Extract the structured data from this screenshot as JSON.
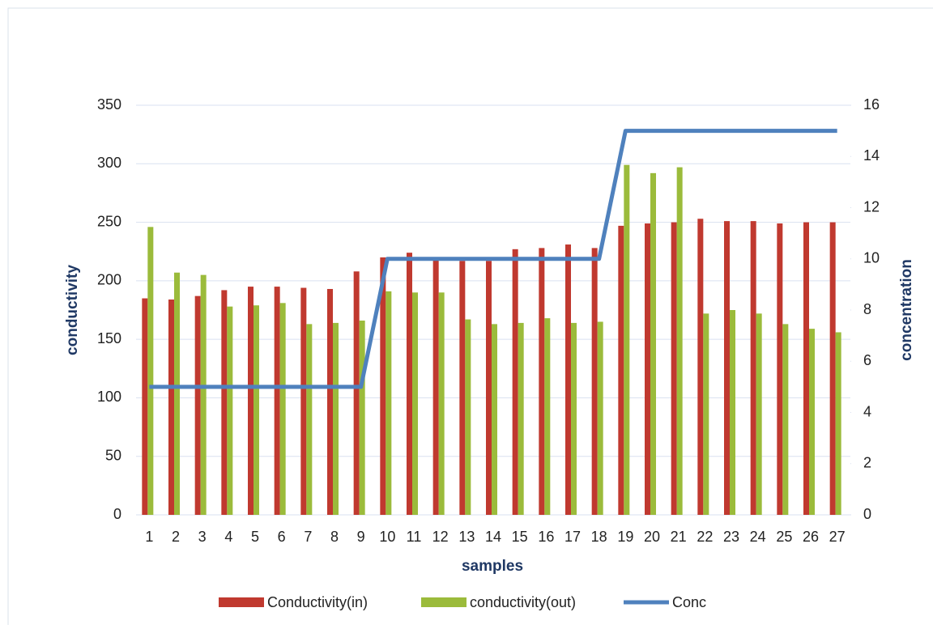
{
  "chart_data": {
    "type": "bar",
    "xlabel": "samples",
    "ylabel": "conductivity",
    "y2label": "concentration",
    "categories": [
      "1",
      "2",
      "3",
      "4",
      "5",
      "6",
      "7",
      "8",
      "9",
      "10",
      "11",
      "12",
      "13",
      "14",
      "15",
      "16",
      "17",
      "18",
      "19",
      "20",
      "21",
      "22",
      "23",
      "24",
      "25",
      "26",
      "27"
    ],
    "series": [
      {
        "name": "Conductivity(in)",
        "type": "bar",
        "color": "#c0392f",
        "values": [
          185,
          184,
          187,
          192,
          195,
          195,
          194,
          193,
          208,
          220,
          224,
          218,
          217,
          217,
          227,
          228,
          231,
          228,
          247,
          249,
          250,
          253,
          251,
          251,
          249,
          250,
          250
        ]
      },
      {
        "name": "conductivity(out)",
        "type": "bar",
        "color": "#9bbb3b",
        "values": [
          246,
          207,
          205,
          178,
          179,
          181,
          163,
          164,
          166,
          191,
          190,
          190,
          167,
          163,
          164,
          168,
          164,
          165,
          299,
          292,
          297,
          172,
          175,
          172,
          163,
          159,
          156
        ]
      },
      {
        "name": "Conc",
        "type": "line",
        "axis": "y2",
        "color": "#4f81bd",
        "values": [
          5,
          5,
          5,
          5,
          5,
          5,
          5,
          5,
          5,
          10,
          10,
          10,
          10,
          10,
          10,
          10,
          10,
          10,
          15,
          15,
          15,
          15,
          15,
          15,
          15,
          15,
          15
        ]
      }
    ],
    "ylim": [
      0,
      350
    ],
    "yticks": [
      0,
      50,
      100,
      150,
      200,
      250,
      300,
      350
    ],
    "y2lim": [
      0,
      16
    ],
    "y2ticks": [
      0,
      2,
      4,
      6,
      8,
      10,
      12,
      14,
      16
    ],
    "grid": true,
    "legend": "bottom"
  }
}
